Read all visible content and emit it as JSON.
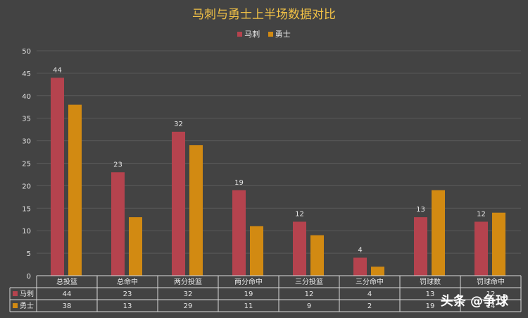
{
  "chart_data": {
    "type": "bar",
    "title": "马刺与勇士上半场数据对比",
    "categories": [
      "总投篮",
      "总命中",
      "两分投篮",
      "两分命中",
      "三分投篮",
      "三分命中",
      "罚球数",
      "罚球命中"
    ],
    "series": [
      {
        "name": "马刺",
        "color": "#b5434e",
        "values": [
          44,
          23,
          32,
          19,
          12,
          4,
          13,
          12
        ]
      },
      {
        "name": "勇士",
        "color": "#d28a12",
        "values": [
          38,
          13,
          29,
          11,
          9,
          2,
          19,
          14
        ]
      }
    ],
    "data_labels_series": 0,
    "ylim": [
      0,
      50
    ],
    "yticks": [
      0,
      5,
      10,
      15,
      20,
      25,
      30,
      35,
      40,
      45,
      50
    ],
    "grid": true,
    "legend_position": "top",
    "data_table": true
  },
  "watermark": "头条 @争球"
}
